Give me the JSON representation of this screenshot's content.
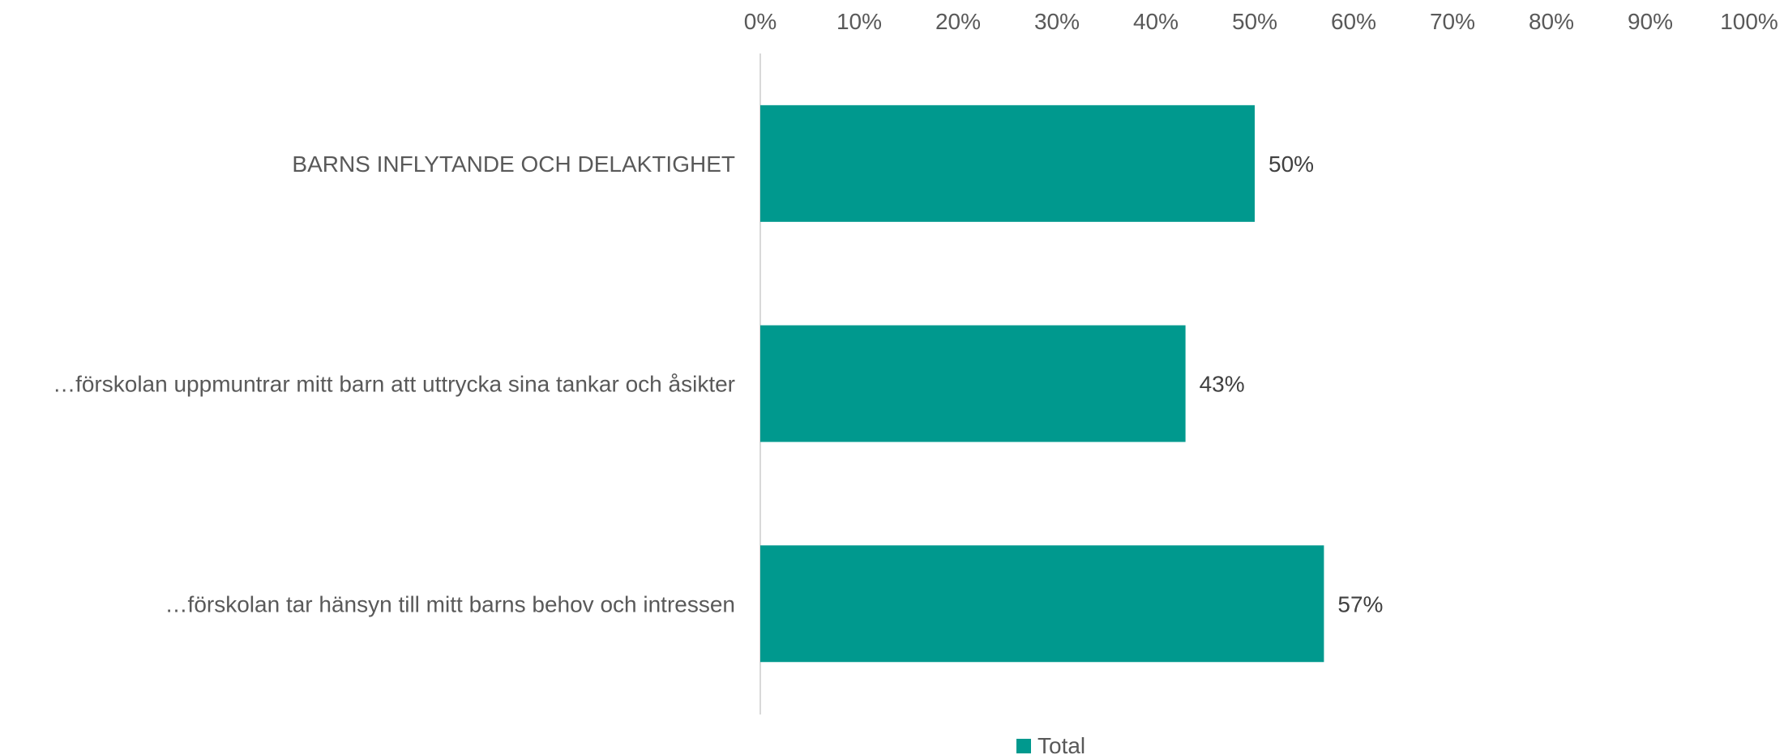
{
  "chart_data": {
    "type": "bar",
    "orientation": "horizontal",
    "categories": [
      "BARNS INFLYTANDE OCH DELAKTIGHET",
      "…förskolan uppmuntrar mitt barn att uttrycka sina tankar och åsikter",
      "…förskolan tar hänsyn till mitt barns behov och intressen"
    ],
    "series": [
      {
        "name": "Total",
        "values": [
          50,
          43,
          57
        ],
        "value_labels": [
          "50%",
          "43%",
          "57%"
        ],
        "color": "#00998e"
      }
    ],
    "xlim": [
      0,
      100
    ],
    "x_ticks": [
      "0%",
      "10%",
      "20%",
      "30%",
      "40%",
      "50%",
      "60%",
      "70%",
      "80%",
      "90%",
      "100%"
    ],
    "x_axis_position": "top",
    "grid": false,
    "legend_position": "bottom-center"
  }
}
